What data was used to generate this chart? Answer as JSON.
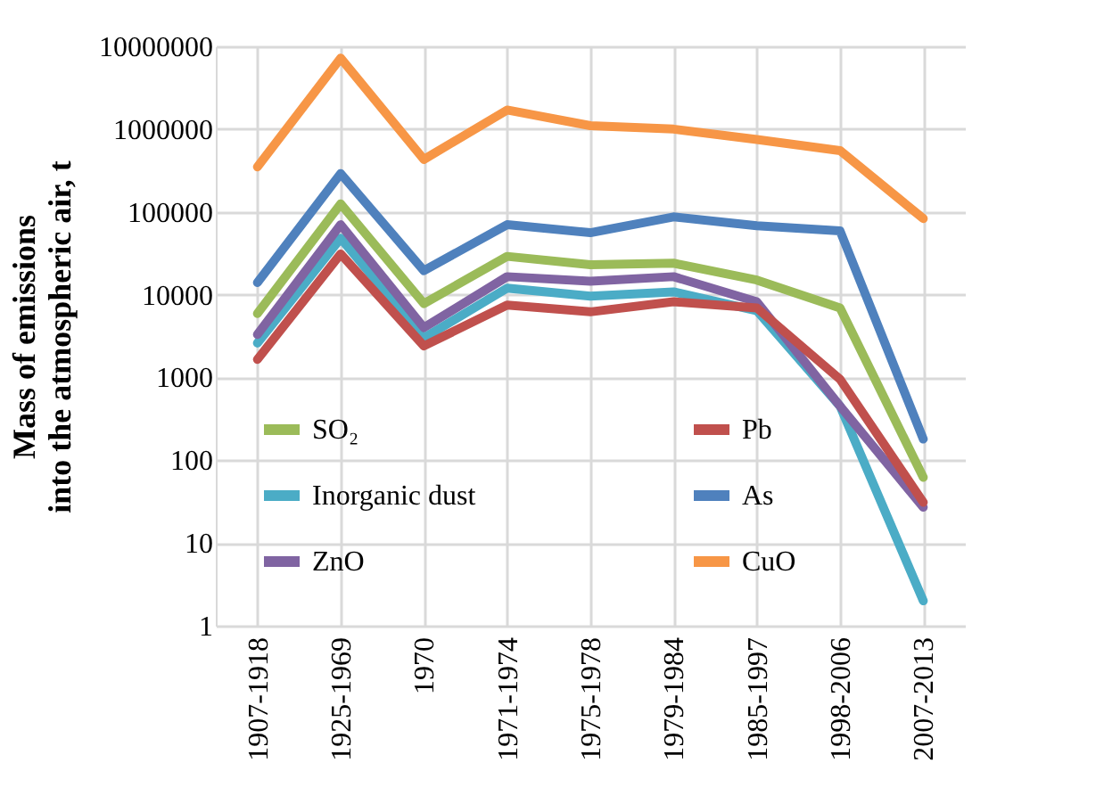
{
  "chart_data": {
    "type": "line",
    "ylabel": "Mass of emissions\ninto the atmospheric air, t",
    "categories": [
      "1907-1918",
      "1925-1969",
      "1970",
      "1971-1974",
      "1975-1978",
      "1979-1984",
      "1985-1997",
      "1998-2006",
      "2007-2013"
    ],
    "series": [
      {
        "name": "SO₂",
        "color": "#9bbb59",
        "values": [
          5900,
          125000,
          7800,
          29000,
          23000,
          24000,
          15000,
          6900,
          62
        ]
      },
      {
        "name": "Inorganic dust",
        "color": "#4bacc6",
        "values": [
          2600,
          48000,
          3000,
          12000,
          9600,
          10800,
          6400,
          450,
          2
        ]
      },
      {
        "name": "ZnO",
        "color": "#8064a2",
        "values": [
          3300,
          70000,
          4000,
          16500,
          14500,
          16500,
          8200,
          450,
          27
        ]
      },
      {
        "name": "Pb",
        "color": "#c0504d",
        "values": [
          1650,
          31000,
          2400,
          7500,
          6200,
          8200,
          6900,
          950,
          31
        ]
      },
      {
        "name": "As",
        "color": "#4f81bd",
        "values": [
          14000,
          290000,
          19500,
          70000,
          56000,
          87000,
          68000,
          59000,
          180
        ]
      },
      {
        "name": "CuO",
        "color": "#f79646",
        "values": [
          350000,
          7200000,
          430000,
          1700000,
          1100000,
          1000000,
          750000,
          550000,
          83000
        ]
      }
    ],
    "log": true,
    "ylim": [
      1,
      10000000
    ],
    "yticks": [
      1,
      10,
      100,
      1000,
      10000,
      100000,
      1000000,
      10000000
    ],
    "grid": true,
    "legend": "bottom left",
    "marker": "none",
    "line_style": "solid"
  }
}
